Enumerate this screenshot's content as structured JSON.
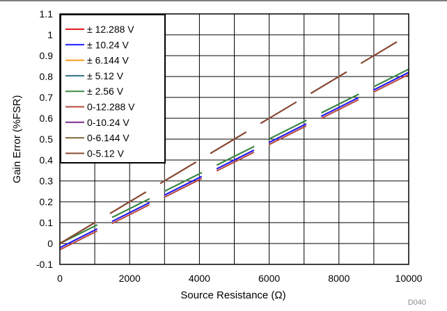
{
  "chart_data": {
    "type": "line",
    "title": "",
    "xlabel": "Source Resistance (Ω)",
    "ylabel": "Gain Error (%FSR)",
    "xlim": [
      0,
      10000
    ],
    "ylim": [
      -0.1,
      1.1
    ],
    "x_ticks": [
      "0",
      "2000",
      "4000",
      "6000",
      "8000",
      "10000"
    ],
    "y_ticks": [
      "-0.1",
      "0",
      "0.1",
      "0.2",
      "0.3",
      "0.4",
      "0.5",
      "0.6",
      "0.7",
      "0.8",
      "0.9",
      "1",
      "1.1"
    ],
    "grid": true,
    "legend_position": "top-left",
    "footnote": "D040",
    "x": [
      0,
      10000
    ],
    "series": [
      {
        "name": "± 12.288 V",
        "color": "#e41a1c",
        "values": [
          -0.02,
          0.82
        ]
      },
      {
        "name": "± 10.24 V",
        "color": "#1a1aff",
        "values": [
          -0.02,
          0.82
        ]
      },
      {
        "name": "± 6.144 V",
        "color": "#ff9a1a",
        "values": [
          0.0,
          0.835
        ]
      },
      {
        "name": "± 5.12 V",
        "color": "#2f6f86",
        "values": [
          0.0,
          0.835
        ]
      },
      {
        "name": "± 2.56 V",
        "color": "#3a8a46",
        "values": [
          0.0,
          0.835
        ]
      },
      {
        "name": "0-12.288 V",
        "color": "#b5493c",
        "values": [
          -0.03,
          0.81
        ]
      },
      {
        "name": "0-10.24 V",
        "color": "#7a2c8c",
        "values": [
          0.0,
          1.0
        ]
      },
      {
        "name": "0-6.144 V",
        "color": "#80673a",
        "values": [
          0.0,
          1.0
        ]
      },
      {
        "name": "0-5.12 V",
        "color": "#8a4a30",
        "values": [
          0.0,
          1.0
        ]
      }
    ]
  }
}
